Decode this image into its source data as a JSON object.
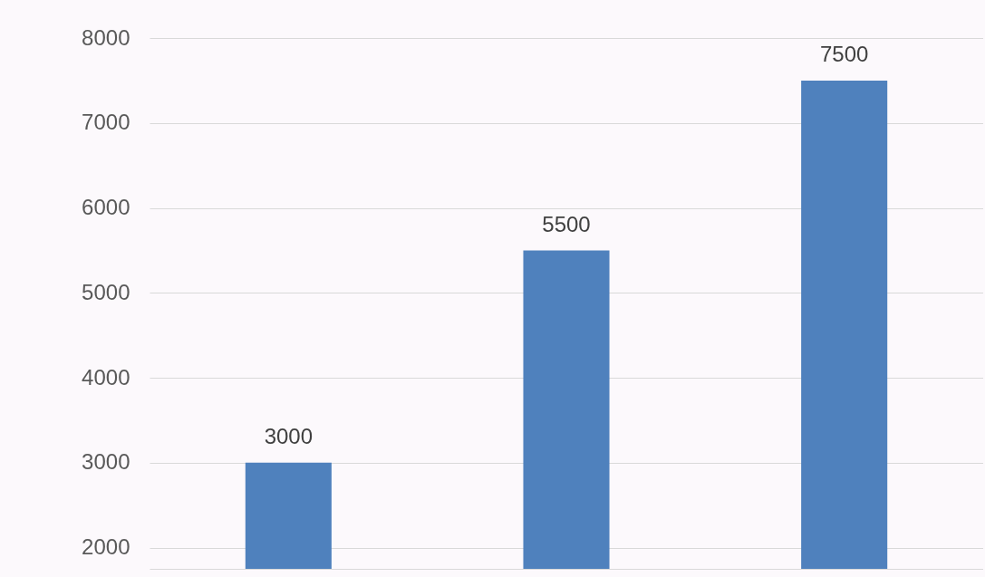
{
  "chart_data": {
    "type": "bar",
    "categories": [
      null,
      null,
      null
    ],
    "values": [
      3000,
      5500,
      7500
    ],
    "color": "#4f81bd",
    "ylim": [
      1750,
      8450
    ],
    "yticks": [
      2000,
      3000,
      4000,
      5000,
      6000,
      7000,
      8000
    ],
    "grid": "y",
    "data_labels": true,
    "tick_labels": "y"
  }
}
